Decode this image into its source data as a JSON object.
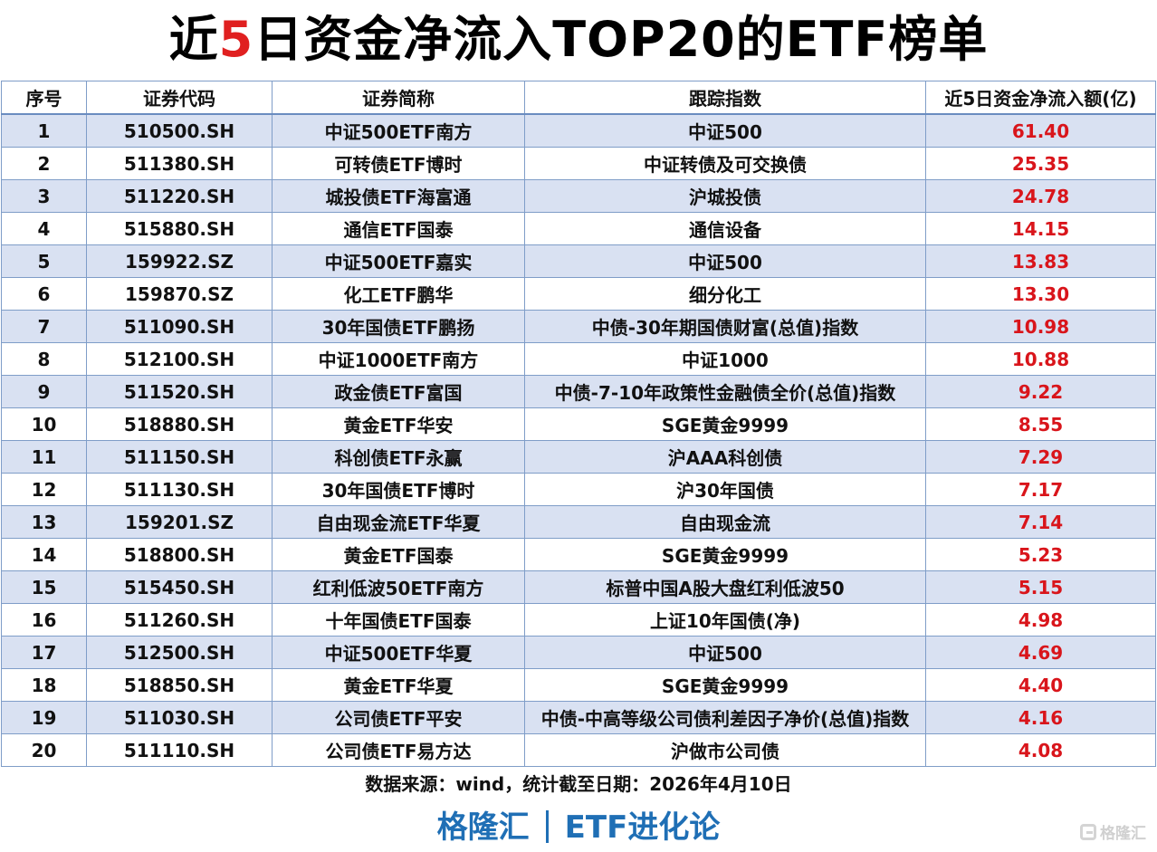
{
  "title": {
    "prefix": "近",
    "highlight": "5",
    "suffix": "日资金净流入TOP20的ETF榜单"
  },
  "table": {
    "headers": [
      "序号",
      "证券代码",
      "证券简称",
      "跟踪指数",
      "近5日资金净流入额(亿)"
    ],
    "rows": [
      {
        "rank": "1",
        "code": "510500.SH",
        "name": "中证500ETF南方",
        "index": "中证500",
        "inflow": "61.40"
      },
      {
        "rank": "2",
        "code": "511380.SH",
        "name": "可转债ETF博时",
        "index": "中证转债及可交换债",
        "inflow": "25.35"
      },
      {
        "rank": "3",
        "code": "511220.SH",
        "name": "城投债ETF海富通",
        "index": "沪城投债",
        "inflow": "24.78"
      },
      {
        "rank": "4",
        "code": "515880.SH",
        "name": "通信ETF国泰",
        "index": "通信设备",
        "inflow": "14.15"
      },
      {
        "rank": "5",
        "code": "159922.SZ",
        "name": "中证500ETF嘉实",
        "index": "中证500",
        "inflow": "13.83"
      },
      {
        "rank": "6",
        "code": "159870.SZ",
        "name": "化工ETF鹏华",
        "index": "细分化工",
        "inflow": "13.30"
      },
      {
        "rank": "7",
        "code": "511090.SH",
        "name": "30年国债ETF鹏扬",
        "index": "中债-30年期国债财富(总值)指数",
        "inflow": "10.98"
      },
      {
        "rank": "8",
        "code": "512100.SH",
        "name": "中证1000ETF南方",
        "index": "中证1000",
        "inflow": "10.88"
      },
      {
        "rank": "9",
        "code": "511520.SH",
        "name": "政金债ETF富国",
        "index": "中债-7-10年政策性金融债全价(总值)指数",
        "inflow": "9.22"
      },
      {
        "rank": "10",
        "code": "518880.SH",
        "name": "黄金ETF华安",
        "index": "SGE黄金9999",
        "inflow": "8.55"
      },
      {
        "rank": "11",
        "code": "511150.SH",
        "name": "科创债ETF永赢",
        "index": "沪AAA科创债",
        "inflow": "7.29"
      },
      {
        "rank": "12",
        "code": "511130.SH",
        "name": "30年国债ETF博时",
        "index": "沪30年国债",
        "inflow": "7.17"
      },
      {
        "rank": "13",
        "code": "159201.SZ",
        "name": "自由现金流ETF华夏",
        "index": "自由现金流",
        "inflow": "7.14"
      },
      {
        "rank": "14",
        "code": "518800.SH",
        "name": "黄金ETF国泰",
        "index": "SGE黄金9999",
        "inflow": "5.23"
      },
      {
        "rank": "15",
        "code": "515450.SH",
        "name": "红利低波50ETF南方",
        "index": "标普中国A股大盘红利低波50",
        "inflow": "5.15"
      },
      {
        "rank": "16",
        "code": "511260.SH",
        "name": "十年国债ETF国泰",
        "index": "上证10年国债(净)",
        "inflow": "4.98"
      },
      {
        "rank": "17",
        "code": "512500.SH",
        "name": "中证500ETF华夏",
        "index": "中证500",
        "inflow": "4.69"
      },
      {
        "rank": "18",
        "code": "518850.SH",
        "name": "黄金ETF华夏",
        "index": "SGE黄金9999",
        "inflow": "4.40"
      },
      {
        "rank": "19",
        "code": "511030.SH",
        "name": "公司债ETF平安",
        "index": "中债-中高等级公司债利差因子净价(总值)指数",
        "inflow": "4.16"
      },
      {
        "rank": "20",
        "code": "511110.SH",
        "name": "公司债ETF易方达",
        "index": "沪做市公司债",
        "inflow": "4.08"
      }
    ]
  },
  "footer": {
    "source": "数据来源：wind，统计截至日期：2026年4月10日",
    "brand_left": "格隆汇",
    "brand_right": "ETF进化论",
    "watermark": "格隆汇"
  },
  "colors": {
    "value_red": "#d9151b",
    "title_highlight": "#e02020",
    "brand_blue": "#1f6fb5",
    "stripe_blue": "#d9e1f2",
    "border": "#7f9dc8"
  },
  "chart_data": {
    "type": "table",
    "title": "近5日资金净流入TOP20的ETF榜单",
    "columns": [
      "序号",
      "证券代码",
      "证券简称",
      "跟踪指数",
      "近5日资金净流入额(亿)"
    ],
    "categories": [
      "中证500ETF南方",
      "可转债ETF博时",
      "城投债ETF海富通",
      "通信ETF国泰",
      "中证500ETF嘉实",
      "化工ETF鹏华",
      "30年国债ETF鹏扬",
      "中证1000ETF南方",
      "政金债ETF富国",
      "黄金ETF华安",
      "科创债ETF永赢",
      "30年国债ETF博时",
      "自由现金流ETF华夏",
      "黄金ETF国泰",
      "红利低波50ETF南方",
      "十年国债ETF国泰",
      "中证500ETF华夏",
      "黄金ETF华夏",
      "公司债ETF平安",
      "公司债ETF易方达"
    ],
    "codes": [
      "510500.SH",
      "511380.SH",
      "511220.SH",
      "515880.SH",
      "159922.SZ",
      "159870.SZ",
      "511090.SH",
      "512100.SH",
      "511520.SH",
      "518880.SH",
      "511150.SH",
      "511130.SH",
      "159201.SZ",
      "518800.SH",
      "515450.SH",
      "511260.SH",
      "512500.SH",
      "518850.SH",
      "511030.SH",
      "511110.SH"
    ],
    "series": [
      {
        "name": "近5日资金净流入额(亿)",
        "values": [
          61.4,
          25.35,
          24.78,
          14.15,
          13.83,
          13.3,
          10.98,
          10.88,
          9.22,
          8.55,
          7.29,
          7.17,
          7.14,
          5.23,
          5.15,
          4.98,
          4.69,
          4.4,
          4.16,
          4.08
        ]
      }
    ],
    "unit": "亿",
    "note": "数据来源：wind，统计截至日期：2026年4月10日"
  }
}
